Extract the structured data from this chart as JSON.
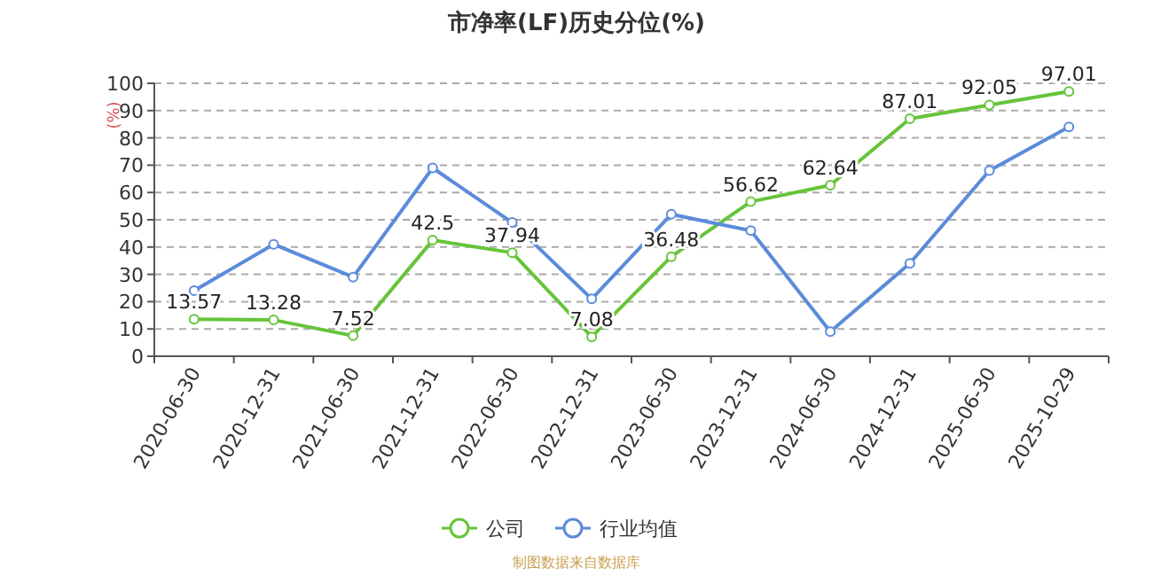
{
  "chart_data": {
    "type": "line",
    "title": "市净率(LF)历史分位(%)",
    "ylabel": "(%)",
    "categories": [
      "2020-06-30",
      "2020-12-31",
      "2021-06-30",
      "2021-12-31",
      "2022-06-30",
      "2022-12-31",
      "2023-06-30",
      "2023-12-31",
      "2024-06-30",
      "2024-12-31",
      "2025-06-30",
      "2025-10-29"
    ],
    "series": [
      {
        "name": "公司",
        "color": "#66c43a",
        "values": [
          13.57,
          13.28,
          7.52,
          42.5,
          37.94,
          7.08,
          36.48,
          56.62,
          62.64,
          87.01,
          92.05,
          97.01
        ],
        "value_labels": [
          "13.57",
          "13.28",
          "7.52",
          "42.5",
          "37.94",
          "7.08",
          "36.48",
          "56.62",
          "62.64",
          "87.01",
          "92.05",
          "97.01"
        ]
      },
      {
        "name": "行业均值",
        "color": "#5b8bdb",
        "values": [
          24,
          41,
          29,
          69,
          49,
          21,
          52,
          46,
          9,
          34,
          68,
          84
        ]
      }
    ],
    "ylim": [
      0,
      100
    ],
    "yticks": [
      0,
      10,
      20,
      30,
      40,
      50,
      60,
      70,
      80,
      90,
      100
    ],
    "grid": "y",
    "legend": "bottom",
    "marker": "circle",
    "line_style": "solid",
    "annotations": [
      "制图数据来自数据库"
    ]
  }
}
